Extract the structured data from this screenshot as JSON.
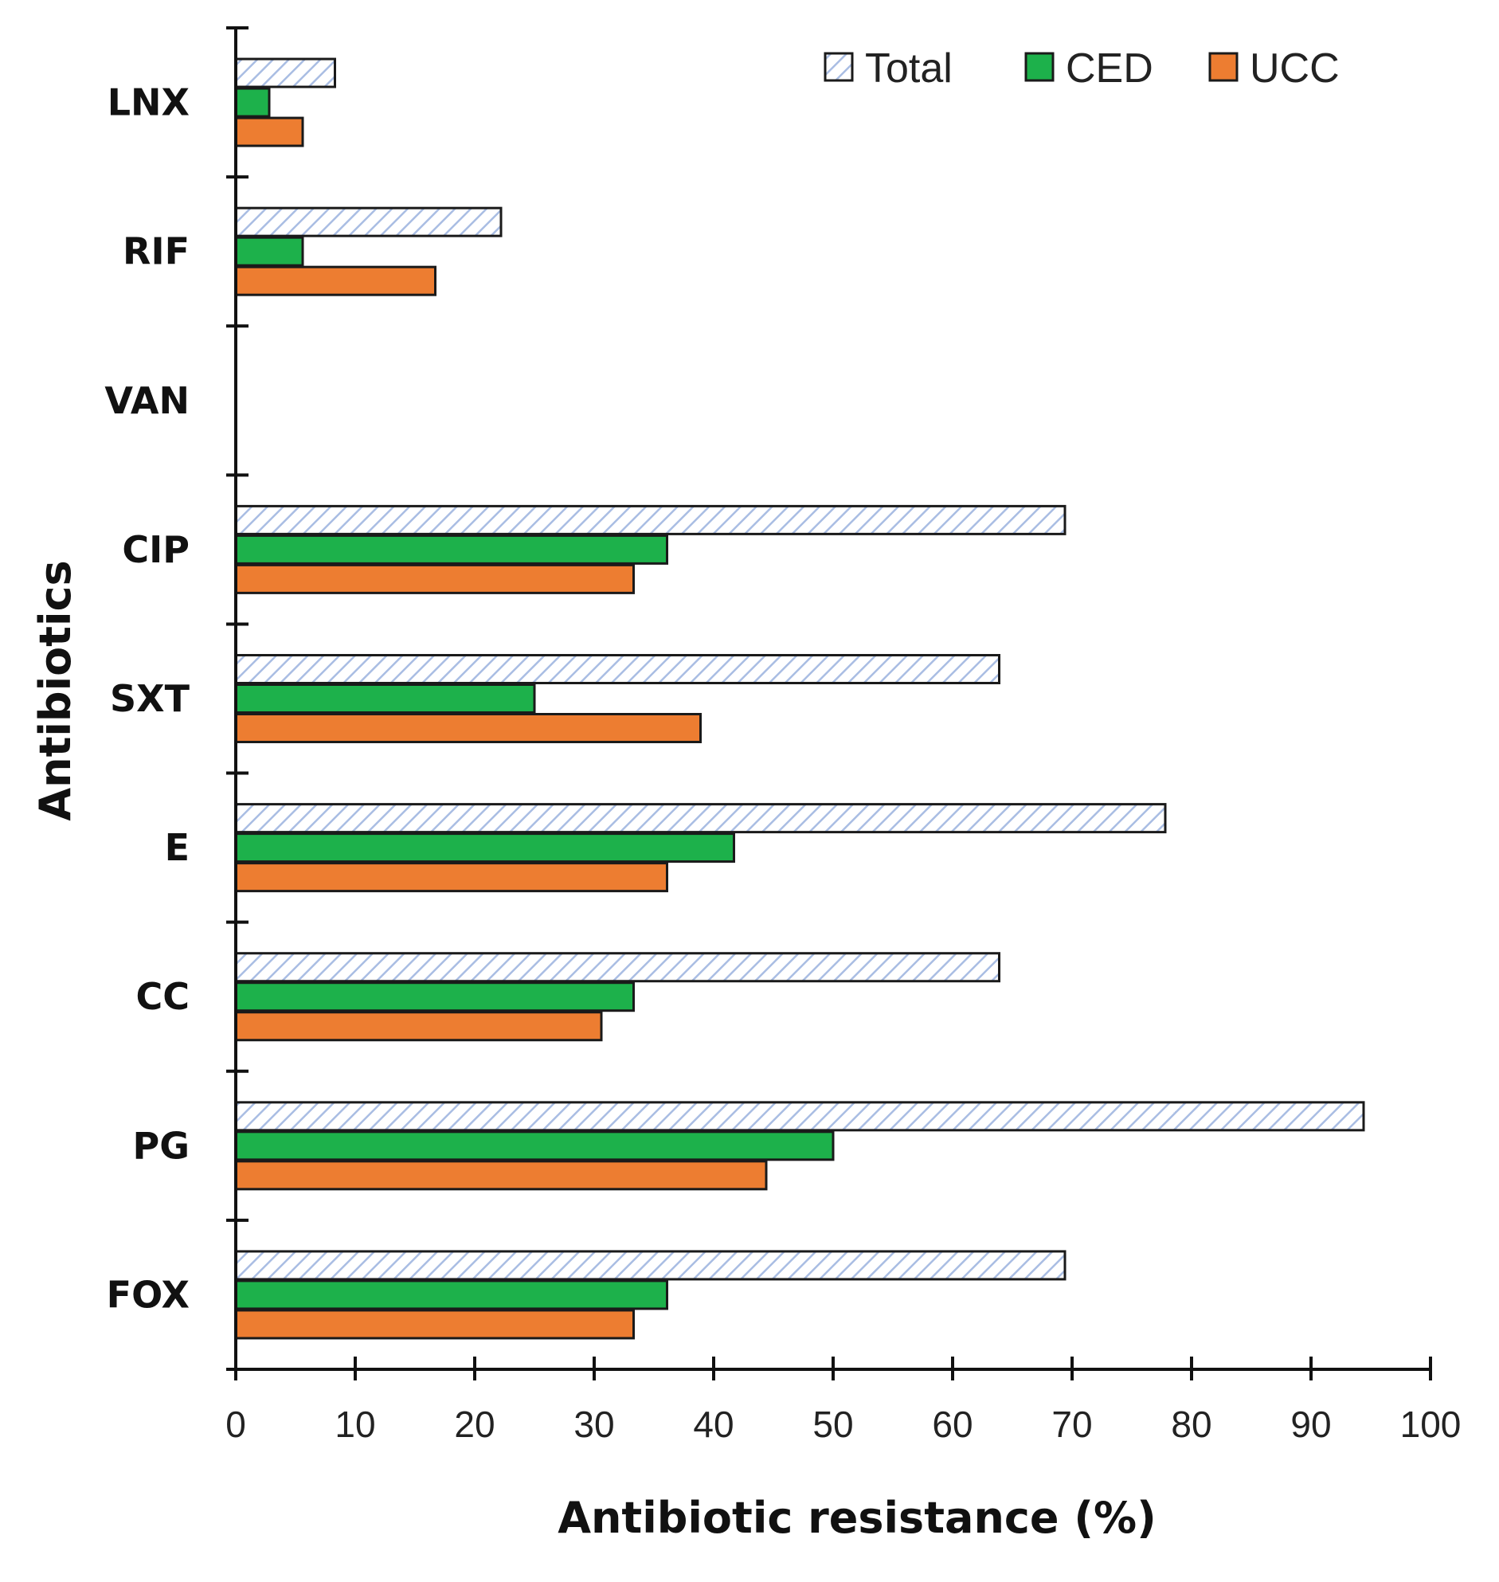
{
  "chart_data": {
    "type": "bar",
    "orientation": "horizontal",
    "title": "",
    "xlabel": "Antibiotic resistance (%)",
    "ylabel": "Antibiotics",
    "xlim": [
      0,
      100
    ],
    "xticks": [
      "0",
      "10",
      "20",
      "30",
      "40",
      "50",
      "60",
      "70",
      "80",
      "90",
      "100"
    ],
    "categories": [
      "LNX",
      "RIF",
      "VAN",
      "CIP",
      "SXT",
      "E",
      "CC",
      "PG",
      "FOX"
    ],
    "series": [
      {
        "name": "Total",
        "color": "#e6ecf7",
        "pattern": "diagonal-hatch",
        "values": [
          8.3,
          22.2,
          0,
          69.4,
          63.9,
          77.8,
          63.9,
          94.4,
          69.4
        ]
      },
      {
        "name": "CED",
        "color": "#1db14b",
        "values": [
          2.8,
          5.6,
          0,
          36.1,
          25.0,
          41.7,
          33.3,
          50.0,
          36.1
        ]
      },
      {
        "name": "UCC",
        "color": "#ed7d31",
        "values": [
          5.6,
          16.7,
          0,
          33.3,
          38.9,
          36.1,
          30.6,
          44.4,
          33.3
        ]
      }
    ],
    "legend_position": "top-right",
    "grid": false
  }
}
